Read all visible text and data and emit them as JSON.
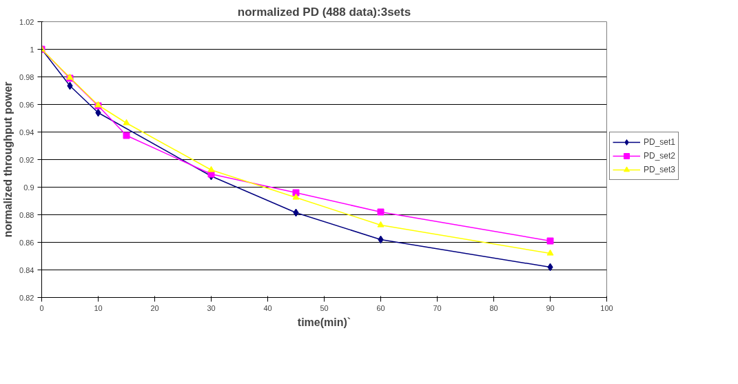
{
  "chart_data": {
    "type": "line",
    "title": "normalized PD (488 data):3sets",
    "xlabel": "time(min)`",
    "ylabel": "normalized throughput power",
    "xlim": [
      0,
      100
    ],
    "xticks": [
      0,
      10,
      20,
      30,
      40,
      50,
      60,
      70,
      80,
      90,
      100
    ],
    "ylim": [
      0.82,
      1.02
    ],
    "yticks": [
      0.82,
      0.84,
      0.86,
      0.88,
      0.9,
      0.92,
      0.94,
      0.96,
      0.98,
      1,
      1.02
    ],
    "grid": "y",
    "legend": "right",
    "series": [
      {
        "name": "PD_set1",
        "color": "#000080",
        "marker": "diamond",
        "x": [
          0,
          5,
          10,
          30,
          45,
          60,
          90
        ],
        "values": [
          1,
          0.9735,
          0.954,
          0.908,
          0.8815,
          0.862,
          0.842
        ]
      },
      {
        "name": "PD_set2",
        "color": "#ff00ff",
        "marker": "square",
        "x": [
          0,
          5,
          10,
          15,
          30,
          45,
          60,
          90
        ],
        "values": [
          1,
          0.979,
          0.959,
          0.9375,
          0.9095,
          0.896,
          0.882,
          0.861
        ]
      },
      {
        "name": "PD_set3",
        "color": "#ffff00",
        "marker": "triangle",
        "x": [
          0,
          5,
          10,
          15,
          30,
          45,
          60,
          90
        ],
        "values": [
          1,
          0.9795,
          0.9595,
          0.9465,
          0.9125,
          0.8925,
          0.8725,
          0.852
        ]
      }
    ]
  }
}
